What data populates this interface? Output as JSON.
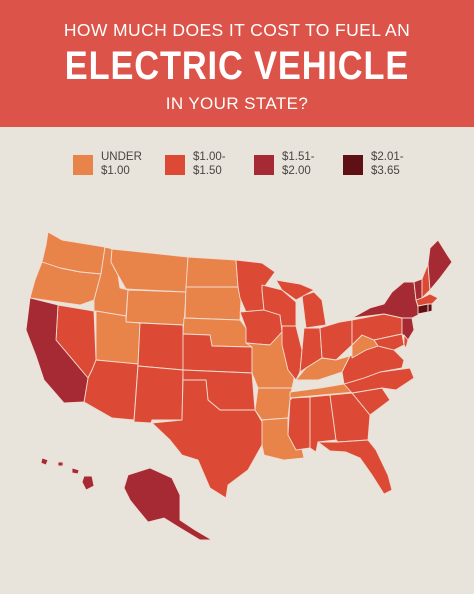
{
  "header": {
    "line1": "HOW MUCH DOES IT COST TO FUEL AN",
    "line2": "ELECTRIC VEHICLE",
    "line3": "IN YOUR STATE?"
  },
  "legend": [
    {
      "line1": "UNDER",
      "line2": "$1.00",
      "color": "#e8834a"
    },
    {
      "line1": "$1.00-",
      "line2": "$1.50",
      "color": "#dc4a35"
    },
    {
      "line1": "$1.51-",
      "line2": "$2.00",
      "color": "#a52a33"
    },
    {
      "line1": "$2.01-",
      "line2": "$3.65",
      "color": "#5e1015"
    }
  ],
  "colors": {
    "background": "#e8e4dc",
    "header": "#dc5449",
    "state_border": "#f1dcd0"
  }
}
